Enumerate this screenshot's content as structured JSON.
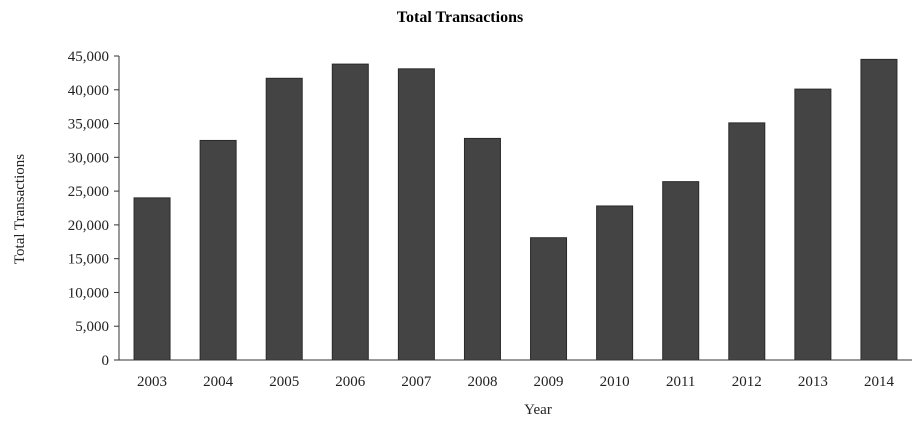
{
  "chart_data": {
    "type": "bar",
    "title": "Total Transactions",
    "xlabel": "Year",
    "ylabel": "Total Transactions",
    "categories": [
      "2003",
      "2004",
      "2005",
      "2006",
      "2007",
      "2008",
      "2009",
      "2010",
      "2011",
      "2012",
      "2013",
      "2014"
    ],
    "values": [
      24000,
      32500,
      41700,
      43800,
      43100,
      32800,
      18100,
      22800,
      26400,
      35100,
      40100,
      44500
    ],
    "ylim": [
      0,
      45000
    ],
    "yticks": [
      0,
      5000,
      10000,
      15000,
      20000,
      25000,
      30000,
      35000,
      40000,
      45000
    ],
    "ytick_labels": [
      "0",
      "5,000",
      "10,000",
      "15,000",
      "20,000",
      "25,000",
      "30,000",
      "35,000",
      "40,000",
      "45,000"
    ],
    "grid": false,
    "legend": "none",
    "bar_color": "#444444"
  }
}
